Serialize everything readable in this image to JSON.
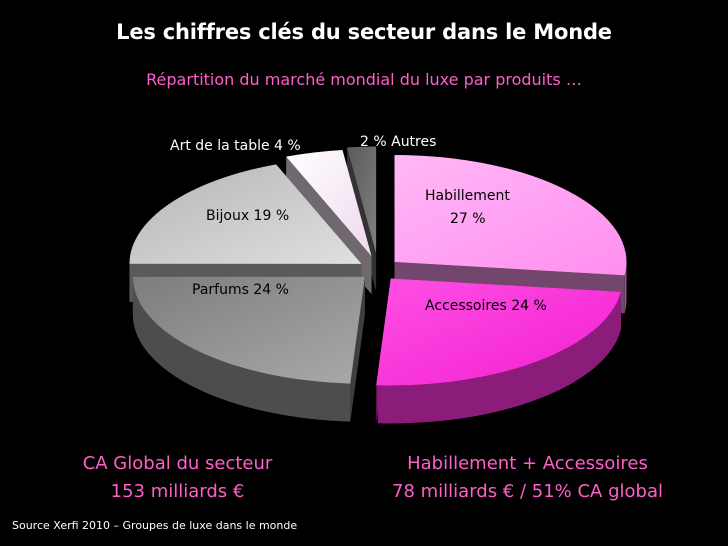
{
  "header": {
    "title": "Les chiffres clés du secteur dans le Monde",
    "subtitle": "Répartition du marché mondial du luxe par produits …"
  },
  "chart_data": {
    "type": "pie",
    "style": "3d-exploded",
    "categories": [
      "Habillement",
      "Accessoires",
      "Parfums",
      "Bijoux",
      "Art de la table",
      "Autres"
    ],
    "values": [
      27,
      24,
      24,
      19,
      4,
      2
    ],
    "unit": "%",
    "colors": [
      "#ff9cf3",
      "#ff33dd",
      "#8c8c8c",
      "#c8c8c8",
      "#f7e8f6",
      "#6e6e6e"
    ],
    "labels": {
      "habillement_line1": "Habillement",
      "habillement_line2": "27 %",
      "accessoires": "Accessoires 24 %",
      "parfums": "Parfums 24 %",
      "bijoux": "Bijoux 19 %",
      "art": "Art de la table  4 %",
      "autres": "2 % Autres"
    }
  },
  "footer": {
    "left_line1": "CA Global du secteur",
    "left_line2": "153 milliards €",
    "right_line1": "Habillement + Accessoires",
    "right_line2": "78 milliards € / 51% CA global",
    "source": "Source  Xerfi 2010 – Groupes de luxe dans le monde"
  }
}
